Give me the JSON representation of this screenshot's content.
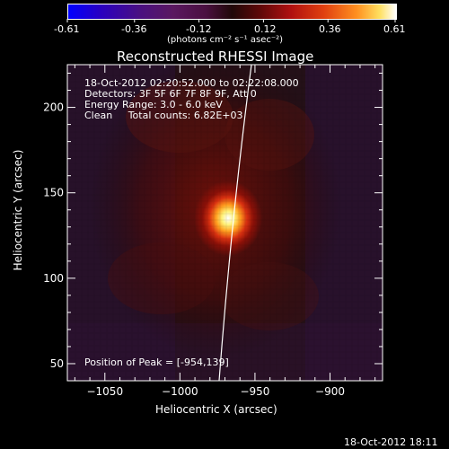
{
  "colorbar": {
    "tick_labels": [
      "-0.61",
      "-0.36",
      "-0.12",
      "0.12",
      "0.36",
      "0.61"
    ],
    "unit_label": "(photons cm⁻² s⁻¹ asec⁻²)",
    "min": -0.61,
    "max": 0.61
  },
  "title": "Reconstructed RHESSI Image",
  "info": {
    "time_range": "18-Oct-2012 02:20:52.000 to 02:22:08.000",
    "detectors": "Detectors: 3F 5F 6F 7F 8F 9F, Att 0",
    "energy_range": "Energy Range: 3.0 - 6.0 keV",
    "method_counts": "Clean     Total counts: 6.82E+03"
  },
  "peak_label": "Position of Peak = [-954,139]",
  "axes": {
    "xlabel": "Heliocentric X (arcsec)",
    "ylabel": "Heliocentric Y (arcsec)",
    "x_ticks": [
      -1050,
      -1000,
      -950,
      -900
    ],
    "x_tick_labels": [
      "−1050",
      "−1000",
      "−950",
      "−900"
    ],
    "y_ticks": [
      50,
      100,
      150,
      200
    ],
    "y_tick_labels": [
      "50",
      "100",
      "150",
      "200"
    ],
    "xlim": [
      -1075,
      -865
    ],
    "ylim": [
      40,
      225
    ]
  },
  "image": {
    "peak_position": [
      -954,
      139
    ],
    "colormap": "Rainbow / heat (black-red-orange-yellow-white)"
  },
  "timestamp": "18-Oct-2012 18:11"
}
